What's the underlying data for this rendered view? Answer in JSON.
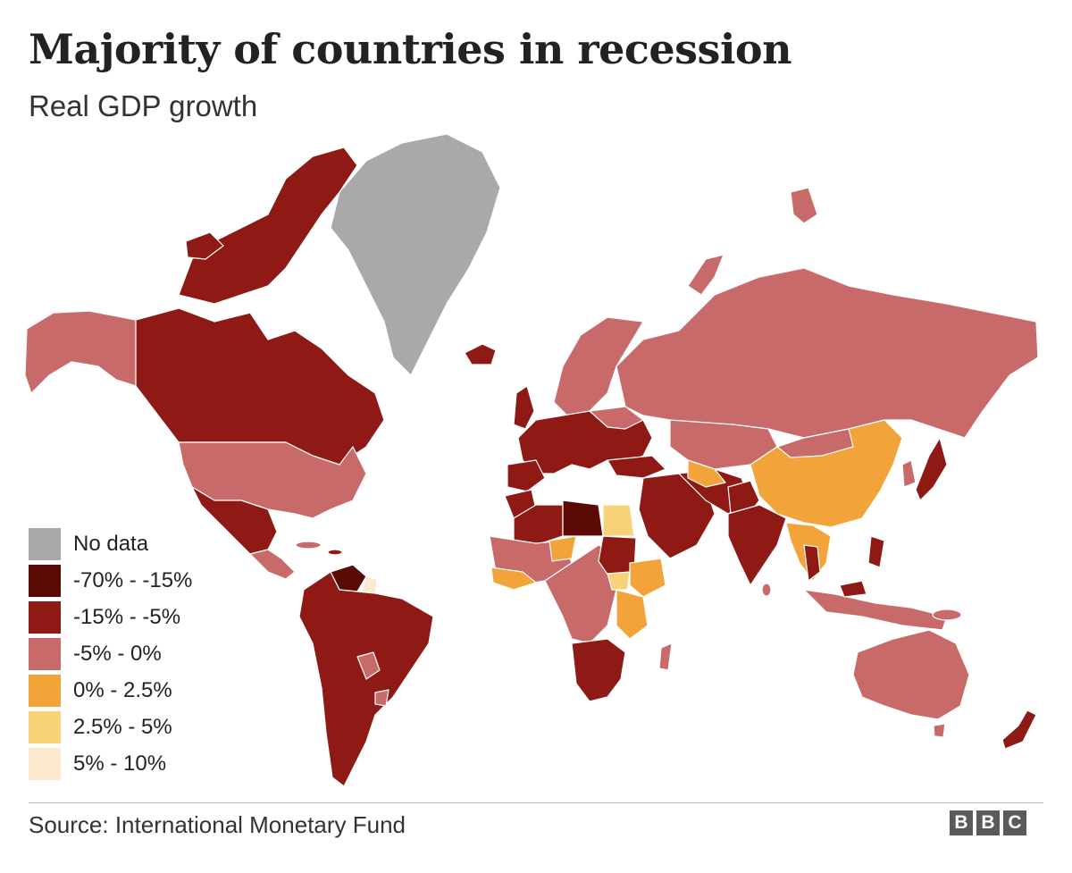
{
  "title": "Majority of countries in recession",
  "subtitle": "Real GDP growth",
  "source": "Source: International Monetary Fund",
  "logo_letters": [
    "B",
    "B",
    "C"
  ],
  "colors": {
    "no_data": "#a9a9a9",
    "band_1": "#5c0a06",
    "band_2": "#8f1914",
    "band_3": "#c96a6a",
    "band_4": "#f2a43a",
    "band_5": "#f8d278",
    "band_6": "#fde8d0"
  },
  "legend": [
    {
      "label": "No data",
      "color": "#a9a9a9"
    },
    {
      "label": "-70% - -15%",
      "color": "#5c0a06"
    },
    {
      "label": "-15% - -5%",
      "color": "#8f1914"
    },
    {
      "label": "-5% - 0%",
      "color": "#c96a6a"
    },
    {
      "label": "0% - 2.5%",
      "color": "#f2a43a"
    },
    {
      "label": "2.5% - 5%",
      "color": "#f8d278"
    },
    {
      "label": "5% - 10%",
      "color": "#fde8d0"
    }
  ]
}
